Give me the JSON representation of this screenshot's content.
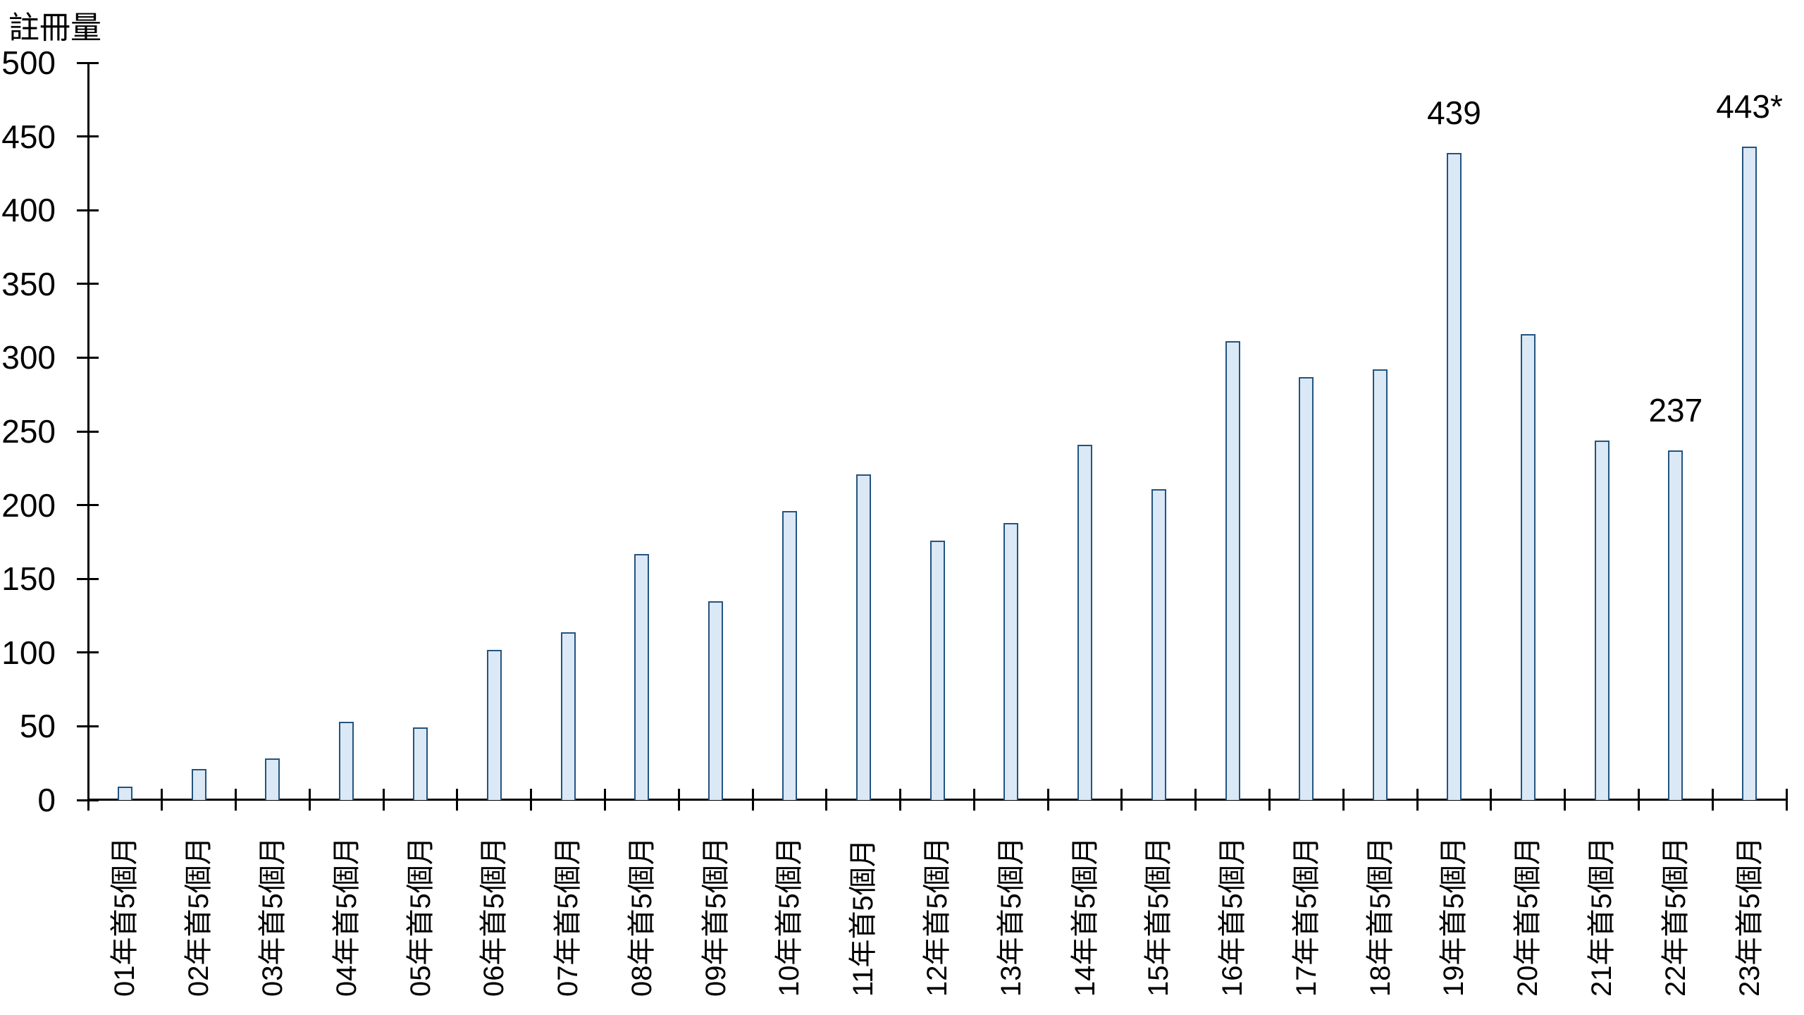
{
  "chart_data": {
    "type": "bar",
    "title": "註冊量",
    "ylabel": "註冊量",
    "xlabel": "",
    "ylim": [
      0,
      500
    ],
    "y_tick_step": 50,
    "y_tick_labels": [
      "0",
      "50",
      "100",
      "150",
      "200",
      "250",
      "300",
      "350",
      "400",
      "450",
      "500"
    ],
    "categories": [
      "01年首5個月",
      "02年首5個月",
      "03年首5個月",
      "04年首5個月",
      "05年首5個月",
      "06年首5個月",
      "07年首5個月",
      "08年首5個月",
      "09年首5個月",
      "10年首5個月",
      "11年首5個月",
      "12年首5個月",
      "13年首5個月",
      "14年首5個月",
      "15年首5個月",
      "16年首5個月",
      "17年首5個月",
      "18年首5個月",
      "19年首5個月",
      "20年首5個月",
      "21年首5個月",
      "22年首5個月",
      "23年首5個月"
    ],
    "values": [
      9,
      21,
      28,
      53,
      49,
      102,
      114,
      167,
      135,
      196,
      221,
      176,
      188,
      241,
      211,
      311,
      287,
      292,
      439,
      316,
      244,
      237,
      443
    ],
    "point_labels": [
      "",
      "",
      "",
      "",
      "",
      "",
      "",
      "",
      "",
      "",
      "",
      "",
      "",
      "",
      "",
      "",
      "",
      "",
      "439",
      "",
      "",
      "237",
      "443*"
    ],
    "grid": false,
    "legend": "none",
    "bar_fill_color": "#dbe8f5",
    "bar_border_color": "#24547e",
    "axis_color": "#000000",
    "text_color": "#000000"
  }
}
